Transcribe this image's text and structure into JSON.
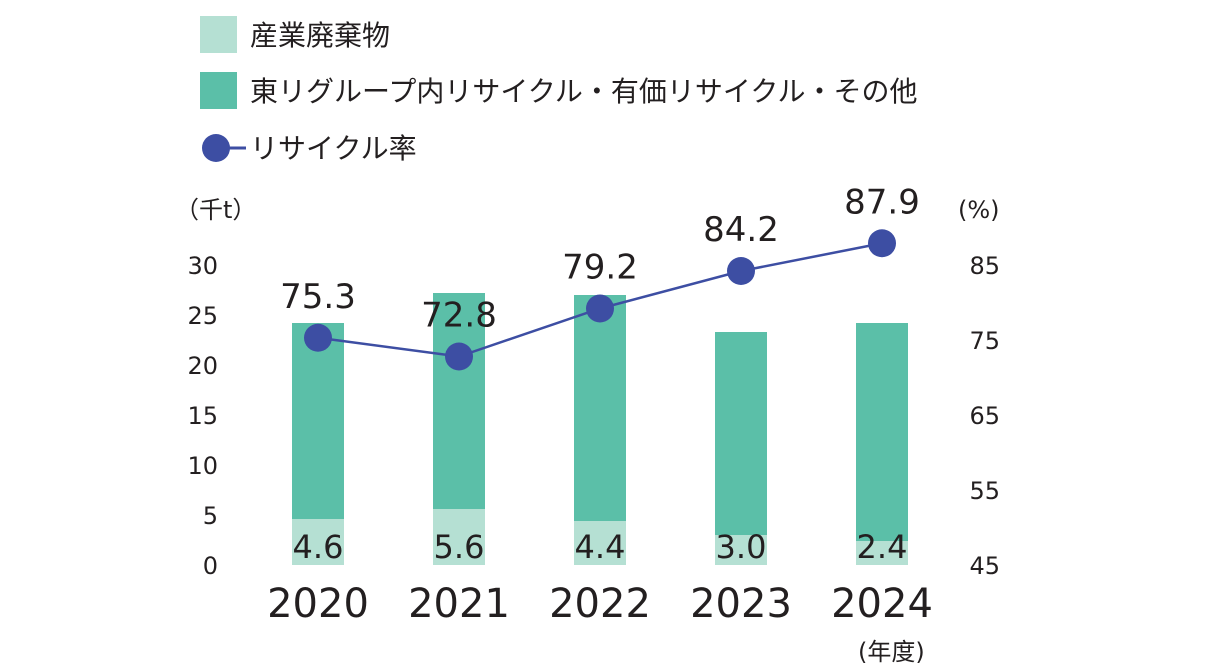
{
  "colors": {
    "industrial_waste": "#b5e0d3",
    "recycle_other": "#5bbfa8",
    "rate_line": "#3d4ea3",
    "text": "#231f20"
  },
  "legend": {
    "industrial_waste": "産業廃棄物",
    "recycle_other": "東リグループ内リサイクル・有価リサイクル・その他",
    "rate": "リサイクル率"
  },
  "chart_data": {
    "type": "bar",
    "categories": [
      "2020",
      "2021",
      "2022",
      "2023",
      "2024"
    ],
    "x_unit": "(年度)",
    "left_axis": {
      "unit": "（千t）",
      "ylim": [
        0,
        30
      ],
      "ticks": [
        0,
        5,
        10,
        15,
        20,
        25,
        30
      ]
    },
    "right_axis": {
      "unit": "(%)",
      "ylim": [
        45,
        85
      ],
      "ticks": [
        45,
        55,
        65,
        75,
        85
      ]
    },
    "stacked": true,
    "series": [
      {
        "name": "産業廃棄物",
        "axis": "left",
        "values": [
          4.6,
          5.6,
          4.4,
          3.0,
          2.4
        ],
        "value_labels": [
          "4.6",
          "5.6",
          "4.4",
          "3.0",
          "2.4"
        ]
      },
      {
        "name": "東リグループ内リサイクル・有価リサイクル・その他",
        "axis": "left",
        "values": [
          19.6,
          21.6,
          22.6,
          20.3,
          21.8
        ]
      },
      {
        "name": "リサイクル率",
        "type": "line",
        "axis": "right",
        "values": [
          75.3,
          72.8,
          79.2,
          84.2,
          87.9
        ],
        "value_labels": [
          "75.3",
          "72.8",
          "79.2",
          "84.2",
          "87.9"
        ]
      }
    ],
    "grid": false,
    "legend_position": "top-left"
  }
}
